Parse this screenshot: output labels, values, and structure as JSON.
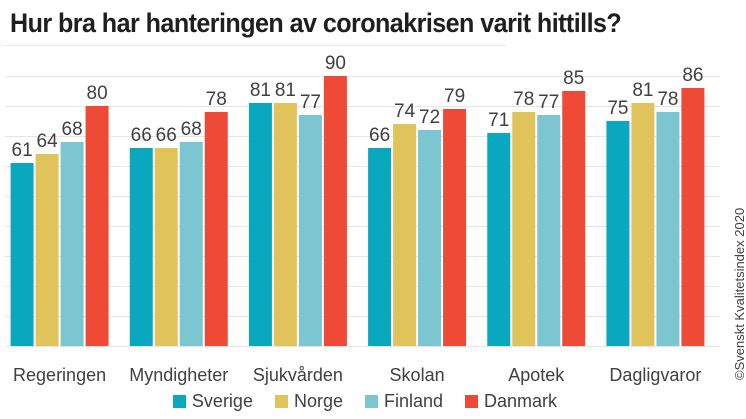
{
  "chart_data": {
    "type": "bar",
    "title": "Hur bra har hanteringen av coronakrisen varit hittills?",
    "xlabel": "",
    "ylabel": "",
    "ylim": [
      0,
      90
    ],
    "grid": true,
    "y_gridline_step": 10,
    "legend_position": "bottom",
    "categories": [
      "Regeringen",
      "Myndigheter",
      "Sjukvården",
      "Skolan",
      "Apotek",
      "Dagligvaror"
    ],
    "series": [
      {
        "name": "Sverige",
        "color": "#0aa8bf",
        "values": [
          61,
          66,
          81,
          66,
          71,
          75
        ]
      },
      {
        "name": "Norge",
        "color": "#e0c35b",
        "values": [
          64,
          66,
          81,
          74,
          78,
          81
        ]
      },
      {
        "name": "Finland",
        "color": "#7cc6d2",
        "values": [
          68,
          68,
          77,
          72,
          77,
          78
        ]
      },
      {
        "name": "Danmark",
        "color": "#ef4a35",
        "values": [
          80,
          78,
          90,
          79,
          85,
          86
        ]
      }
    ],
    "data_labels": true,
    "annotations": [
      "©Svenskt Kvalitetsindex 2020"
    ]
  }
}
